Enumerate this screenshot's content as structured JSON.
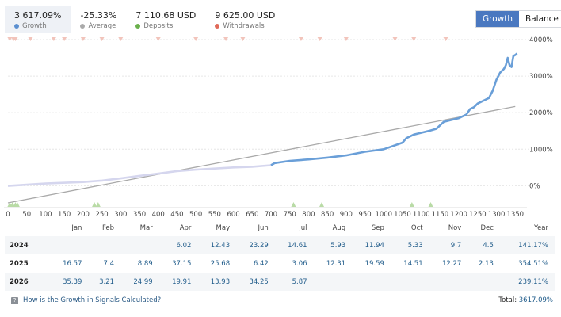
{
  "stats": [
    {
      "value": "3 617.09%",
      "label": "Growth",
      "color": "#5b8fd0"
    },
    {
      "value": "-25.33%",
      "label": "Average",
      "color": "#aaaaaa"
    },
    {
      "value": "7 110.68 USD",
      "label": "Deposits",
      "color": "#6ab04c"
    },
    {
      "value": "9 625.00 USD",
      "label": "Withdrawals",
      "color": "#e06a5a"
    }
  ],
  "toggle": {
    "growth": "Growth",
    "balance": "Balance"
  },
  "chart_data": {
    "type": "line",
    "x_ticks": [
      0,
      50,
      100,
      150,
      200,
      250,
      300,
      350,
      400,
      450,
      500,
      550,
      600,
      650,
      700,
      750,
      800,
      850,
      900,
      950,
      1000,
      1050,
      1100,
      1150,
      1200,
      1250,
      1300,
      1350
    ],
    "y_ticks": [
      "4000%",
      "3000%",
      "2000%",
      "1000%",
      "0%"
    ],
    "ylim": [
      -600,
      4000
    ],
    "xlim": [
      0,
      1360
    ],
    "series": [
      {
        "name": "Growth",
        "x": [
          0,
          100,
          200,
          250,
          300,
          350,
          400,
          450,
          500,
          550,
          600,
          650,
          700,
          710,
          750,
          800,
          850,
          900,
          950,
          1000,
          1050,
          1060,
          1080,
          1100,
          1120,
          1140,
          1160,
          1180,
          1200,
          1220,
          1230,
          1240,
          1250,
          1260,
          1270,
          1280,
          1290,
          1300,
          1310,
          1320,
          1325,
          1330,
          1335,
          1340,
          1345,
          1350,
          1355
        ],
        "y": [
          -5,
          60,
          100,
          140,
          200,
          270,
          330,
          400,
          440,
          470,
          500,
          520,
          560,
          620,
          680,
          720,
          770,
          830,
          930,
          1000,
          1180,
          1300,
          1400,
          1450,
          1500,
          1560,
          1750,
          1800,
          1850,
          1950,
          2100,
          2150,
          2250,
          2300,
          2350,
          2400,
          2600,
          2900,
          3100,
          3200,
          3300,
          3500,
          3300,
          3250,
          3550,
          3580,
          3620
        ]
      },
      {
        "name": "Average",
        "x": [
          0,
          1350
        ],
        "y": [
          -470,
          2170
        ]
      }
    ],
    "deposit_markers_x": [
      5,
      12,
      20,
      25,
      230,
      240,
      760,
      835,
      1075,
      1125
    ],
    "withdrawal_markers_x": [
      5,
      15,
      20,
      60,
      122,
      150,
      200,
      250,
      300,
      400,
      500,
      580,
      625,
      780,
      830,
      900,
      1030,
      1080,
      1165
    ]
  },
  "table": {
    "headers": [
      "",
      "Jan",
      "Feb",
      "Mar",
      "Apr",
      "May",
      "Jun",
      "Jul",
      "Aug",
      "Sep",
      "Oct",
      "Nov",
      "Dec",
      "Year"
    ],
    "rows": [
      [
        "2024",
        "",
        "",
        "",
        "6.02",
        "12.43",
        "23.29",
        "14.61",
        "5.93",
        "11.94",
        "5.33",
        "9.7",
        "4.5",
        "141.17%"
      ],
      [
        "2025",
        "16.57",
        "7.4",
        "8.89",
        "37.15",
        "25.68",
        "6.42",
        "3.06",
        "12.31",
        "19.59",
        "14.51",
        "12.27",
        "2.13",
        "354.51%"
      ],
      [
        "2026",
        "35.39",
        "3.21",
        "24.99",
        "19.91",
        "13.93",
        "34.25",
        "5.87",
        "",
        "",
        "",
        "",
        "",
        "239.11%"
      ]
    ]
  },
  "footer": {
    "help_text": "How is the Growth in Signals Calculated?",
    "total_label": "Total:",
    "total_value": "3617.09%"
  }
}
